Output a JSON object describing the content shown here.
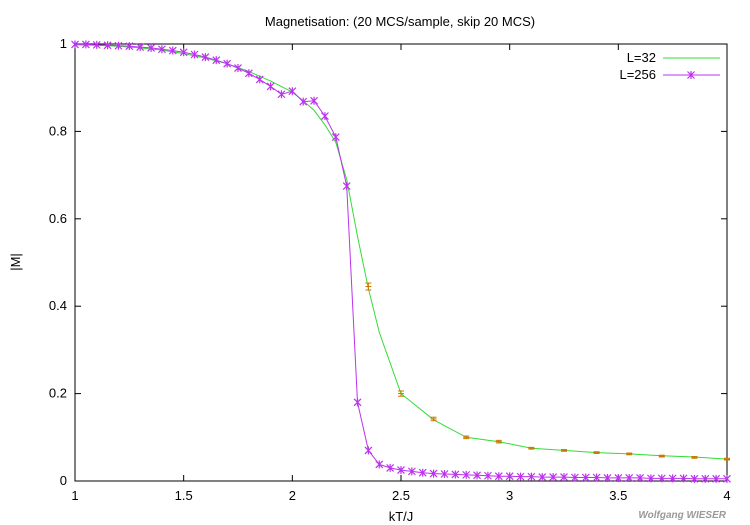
{
  "chart_data": {
    "type": "line",
    "title": "Magnetisation: (20 MCS/sample, skip 20 MCS)",
    "xlabel": "kT/J",
    "ylabel": "|M|",
    "xlim": [
      1,
      4
    ],
    "ylim": [
      0,
      1
    ],
    "xticks": [
      "1",
      "1.5",
      "2",
      "2.5",
      "3",
      "3.5",
      "4"
    ],
    "yticks": [
      "0",
      "0.2",
      "0.4",
      "0.6",
      "0.8",
      "1"
    ],
    "grid": false,
    "legend_position": "top-right",
    "watermark": "Wolfgang WIESER",
    "series": [
      {
        "name": "L=32",
        "color": "#33dd33",
        "marker": "none",
        "x": [
          1.0,
          1.1,
          1.2,
          1.3,
          1.4,
          1.5,
          1.6,
          1.7,
          1.8,
          1.9,
          2.0,
          2.05,
          2.1,
          2.15,
          2.2,
          2.25,
          2.3,
          2.35,
          2.4,
          2.5,
          2.65,
          2.8,
          2.95,
          3.1,
          3.25,
          3.4,
          3.55,
          3.7,
          3.85,
          4.0
        ],
        "y": [
          0.998,
          0.997,
          0.995,
          0.991,
          0.986,
          0.978,
          0.968,
          0.955,
          0.937,
          0.915,
          0.89,
          0.87,
          0.848,
          0.815,
          0.775,
          0.69,
          0.56,
          0.44,
          0.34,
          0.2,
          0.14,
          0.1,
          0.09,
          0.075,
          0.07,
          0.065,
          0.062,
          0.058,
          0.055,
          0.05
        ]
      },
      {
        "name": "L=256",
        "color": "#bb33ee",
        "marker": "asterisk",
        "x": [
          1.0,
          1.05,
          1.1,
          1.15,
          1.2,
          1.25,
          1.3,
          1.35,
          1.4,
          1.45,
          1.5,
          1.55,
          1.6,
          1.65,
          1.7,
          1.75,
          1.8,
          1.85,
          1.9,
          1.95,
          2.0,
          2.05,
          2.1,
          2.15,
          2.2,
          2.25,
          2.3,
          2.35,
          2.4,
          2.45,
          2.5,
          2.55,
          2.6,
          2.65,
          2.7,
          2.75,
          2.8,
          2.85,
          2.9,
          2.95,
          3.0,
          3.05,
          3.1,
          3.15,
          3.2,
          3.25,
          3.3,
          3.35,
          3.4,
          3.45,
          3.5,
          3.55,
          3.6,
          3.65,
          3.7,
          3.75,
          3.8,
          3.85,
          3.9,
          3.95,
          4.0
        ],
        "y": [
          0.999,
          0.999,
          0.998,
          0.997,
          0.996,
          0.995,
          0.993,
          0.991,
          0.988,
          0.985,
          0.981,
          0.976,
          0.97,
          0.963,
          0.955,
          0.945,
          0.933,
          0.919,
          0.903,
          0.885,
          0.892,
          0.868,
          0.87,
          0.835,
          0.787,
          0.675,
          0.18,
          0.07,
          0.038,
          0.03,
          0.025,
          0.022,
          0.019,
          0.017,
          0.016,
          0.015,
          0.014,
          0.013,
          0.012,
          0.011,
          0.011,
          0.01,
          0.01,
          0.009,
          0.009,
          0.009,
          0.008,
          0.008,
          0.008,
          0.007,
          0.007,
          0.007,
          0.007,
          0.006,
          0.006,
          0.006,
          0.006,
          0.005,
          0.005,
          0.005,
          0.005
        ]
      }
    ],
    "error_points": {
      "name": "L=32 error bars",
      "color": "#cc7700",
      "x": [
        2.35,
        2.5,
        2.65,
        2.8,
        2.95,
        3.1,
        3.25,
        3.4,
        3.55,
        3.7,
        3.85,
        4.0
      ],
      "y": [
        0.445,
        0.2,
        0.142,
        0.1,
        0.09,
        0.075,
        0.07,
        0.065,
        0.062,
        0.057,
        0.054,
        0.05
      ],
      "err": [
        0.008,
        0.006,
        0.004,
        0.003,
        0.003,
        0.002,
        0.002,
        0.002,
        0.002,
        0.002,
        0.002,
        0.002
      ]
    }
  }
}
